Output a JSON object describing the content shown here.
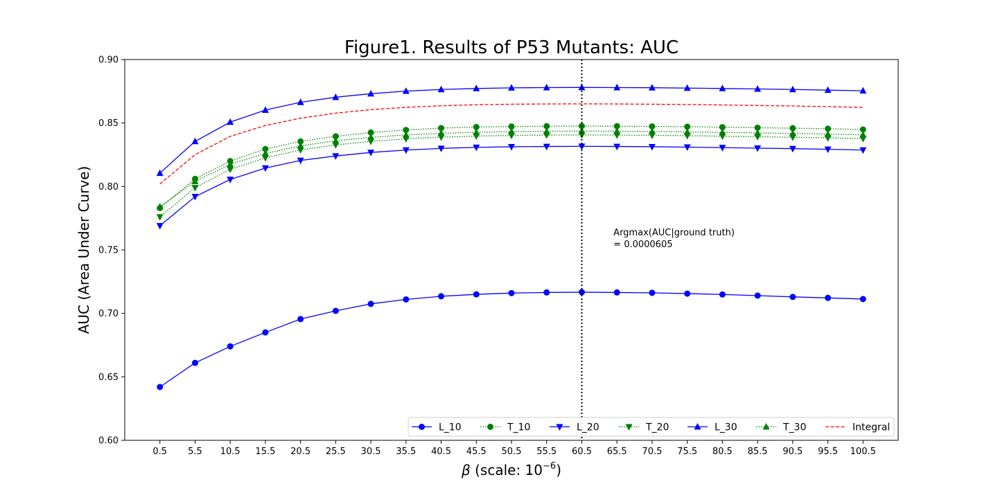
{
  "chart_data": {
    "type": "line",
    "title": "Figure1. Results of P53 Mutants: AUC",
    "xlabel": "β  (scale: 10⁻⁶)",
    "ylabel": "AUC (Area Under Curve)",
    "x": [
      0.5,
      5.5,
      10.5,
      15.5,
      20.5,
      25.5,
      30.5,
      35.5,
      40.5,
      45.5,
      50.5,
      55.5,
      60.5,
      65.5,
      70.5,
      75.5,
      80.5,
      85.5,
      90.5,
      95.5,
      100.5
    ],
    "x_tick_labels": [
      "0.5",
      "5.5",
      "10.5",
      "15.5",
      "20.5",
      "25.5",
      "30.5",
      "35.5",
      "40.5",
      "45.5",
      "50.5",
      "55.5",
      "60.5",
      "65.5",
      "70.5",
      "75.5",
      "80.5",
      "85.5",
      "90.5",
      "95.5",
      "100.5"
    ],
    "xlim": [
      -4.5,
      105.5
    ],
    "ylim": [
      0.6,
      0.9
    ],
    "y_ticks": [
      0.6,
      0.65,
      0.7,
      0.75,
      0.8,
      0.85,
      0.9
    ],
    "y_tick_labels": [
      "0.60",
      "0.65",
      "0.70",
      "0.75",
      "0.80",
      "0.85",
      "0.90"
    ],
    "grid": false,
    "legend_position": "bottom-right",
    "series": [
      {
        "name": "L_10",
        "color": "#0000ff",
        "line": "solid",
        "marker": "circle",
        "values": [
          0.642,
          0.661,
          0.674,
          0.685,
          0.6955,
          0.702,
          0.7075,
          0.711,
          0.7135,
          0.715,
          0.716,
          0.7165,
          0.7167,
          0.7165,
          0.7162,
          0.7156,
          0.7149,
          0.714,
          0.713,
          0.7122,
          0.7113
        ]
      },
      {
        "name": "T_10",
        "color": "#008000",
        "line": "dotted",
        "marker": "circle",
        "values": [
          0.783,
          0.806,
          0.82,
          0.8295,
          0.8355,
          0.8395,
          0.8425,
          0.8445,
          0.846,
          0.8468,
          0.8472,
          0.8475,
          0.8476,
          0.8475,
          0.8473,
          0.8471,
          0.8467,
          0.8463,
          0.8459,
          0.8455,
          0.8449
        ]
      },
      {
        "name": "L_20",
        "color": "#0000ff",
        "line": "solid",
        "marker": "triangle-down",
        "values": [
          0.769,
          0.792,
          0.8055,
          0.8145,
          0.8205,
          0.824,
          0.8268,
          0.8287,
          0.83,
          0.8308,
          0.8313,
          0.8315,
          0.8316,
          0.8315,
          0.8313,
          0.831,
          0.8306,
          0.8302,
          0.8298,
          0.8293,
          0.8287
        ]
      },
      {
        "name": "T_20",
        "color": "#008000",
        "line": "dotted",
        "marker": "triangle-down",
        "values": [
          0.776,
          0.799,
          0.8135,
          0.8225,
          0.8288,
          0.8327,
          0.8355,
          0.8375,
          0.8388,
          0.8397,
          0.8402,
          0.8405,
          0.8406,
          0.8405,
          0.8403,
          0.84,
          0.8396,
          0.8392,
          0.8388,
          0.8383,
          0.8377
        ]
      },
      {
        "name": "L_30",
        "color": "#0000ff",
        "line": "solid",
        "marker": "triangle-up",
        "values": [
          0.8105,
          0.8355,
          0.8507,
          0.8602,
          0.8663,
          0.8703,
          0.8731,
          0.8751,
          0.8764,
          0.8772,
          0.8777,
          0.8779,
          0.878,
          0.8779,
          0.8778,
          0.8775,
          0.8772,
          0.8768,
          0.8764,
          0.8759,
          0.8754
        ]
      },
      {
        "name": "T_30",
        "color": "#008000",
        "line": "dotted",
        "marker": "triangle-up",
        "values": [
          0.784,
          0.804,
          0.8175,
          0.826,
          0.832,
          0.836,
          0.8387,
          0.8406,
          0.8419,
          0.8427,
          0.8432,
          0.8435,
          0.8436,
          0.8435,
          0.8433,
          0.843,
          0.8426,
          0.8422,
          0.8418,
          0.8413,
          0.8407
        ]
      },
      {
        "name": "Integral",
        "color": "#ff0000",
        "line": "dashed",
        "marker": "none",
        "values": [
          0.802,
          0.825,
          0.8395,
          0.848,
          0.8538,
          0.8578,
          0.8605,
          0.8623,
          0.8636,
          0.8644,
          0.8648,
          0.865,
          0.8651,
          0.865,
          0.8648,
          0.8646,
          0.8642,
          0.8638,
          0.8634,
          0.8629,
          0.8623
        ]
      }
    ],
    "vline": {
      "x": 60.5,
      "style": "dotted",
      "color": "#000000"
    },
    "annotation": {
      "lines": [
        "Argmax(AUC|ground truth)",
        " = 0.0000605"
      ],
      "x": 65.5,
      "y": 0.755
    }
  }
}
